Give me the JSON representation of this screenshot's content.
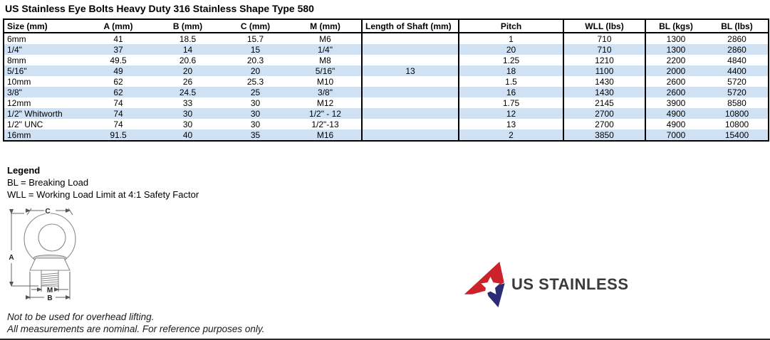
{
  "title": "US Stainless Eye Bolts Heavy Duty 316 Stainless Shape Type 580",
  "table": {
    "headers": [
      "Size (mm)",
      "A (mm)",
      "B (mm)",
      "C (mm)",
      "M (mm)",
      "Length of Shaft (mm)",
      "Pitch",
      "WLL (lbs)",
      "BL (kgs)",
      "BL (lbs)"
    ],
    "rows": [
      [
        "6mm",
        "41",
        "18.5",
        "15.7",
        "M6",
        "",
        "1",
        "710",
        "1300",
        "2860"
      ],
      [
        "1/4\"",
        "37",
        "14",
        "15",
        "1/4\"",
        "",
        "20",
        "710",
        "1300",
        "2860"
      ],
      [
        "8mm",
        "49.5",
        "20.6",
        "20.3",
        "M8",
        "",
        "1.25",
        "1210",
        "2200",
        "4840"
      ],
      [
        "5/16\"",
        "49",
        "20",
        "20",
        "5/16\"",
        "13",
        "18",
        "1100",
        "2000",
        "4400"
      ],
      [
        "10mm",
        "62",
        "26",
        "25.3",
        "M10",
        "",
        "1.5",
        "1430",
        "2600",
        "5720"
      ],
      [
        "3/8\"",
        "62",
        "24.5",
        "25",
        "3/8\"",
        "",
        "16",
        "1430",
        "2600",
        "5720"
      ],
      [
        "12mm",
        "74",
        "33",
        "30",
        "M12",
        "",
        "1.75",
        "2145",
        "3900",
        "8580"
      ],
      [
        "1/2\" Whitworth",
        "74",
        "30",
        "30",
        "1/2\" - 12",
        "",
        "12",
        "2700",
        "4900",
        "10800"
      ],
      [
        "1/2\" UNC",
        "74",
        "30",
        "30",
        "1/2\"-13",
        "",
        "13",
        "2700",
        "4900",
        "10800"
      ],
      [
        "16mm",
        "91.5",
        "40",
        "35",
        "M16",
        "",
        "2",
        "3850",
        "7000",
        "15400"
      ]
    ],
    "stripe_color": "#cfe1f3"
  },
  "legend": {
    "heading": "Legend",
    "lines": [
      "BL = Breaking Load",
      "WLL = Working Load Limit at 4:1 Safety Factor"
    ]
  },
  "diagram": {
    "labels": {
      "a": "A",
      "b": "B",
      "c": "C",
      "m": "M"
    }
  },
  "logo": {
    "text": "US STAINLESS",
    "red": "#cc2229",
    "blue": "#2b2a74",
    "text_color": "#3a3a3c"
  },
  "footnotes": [
    "Not to be used for overhead lifting.",
    "All measurements are nominal. For reference purposes only."
  ]
}
